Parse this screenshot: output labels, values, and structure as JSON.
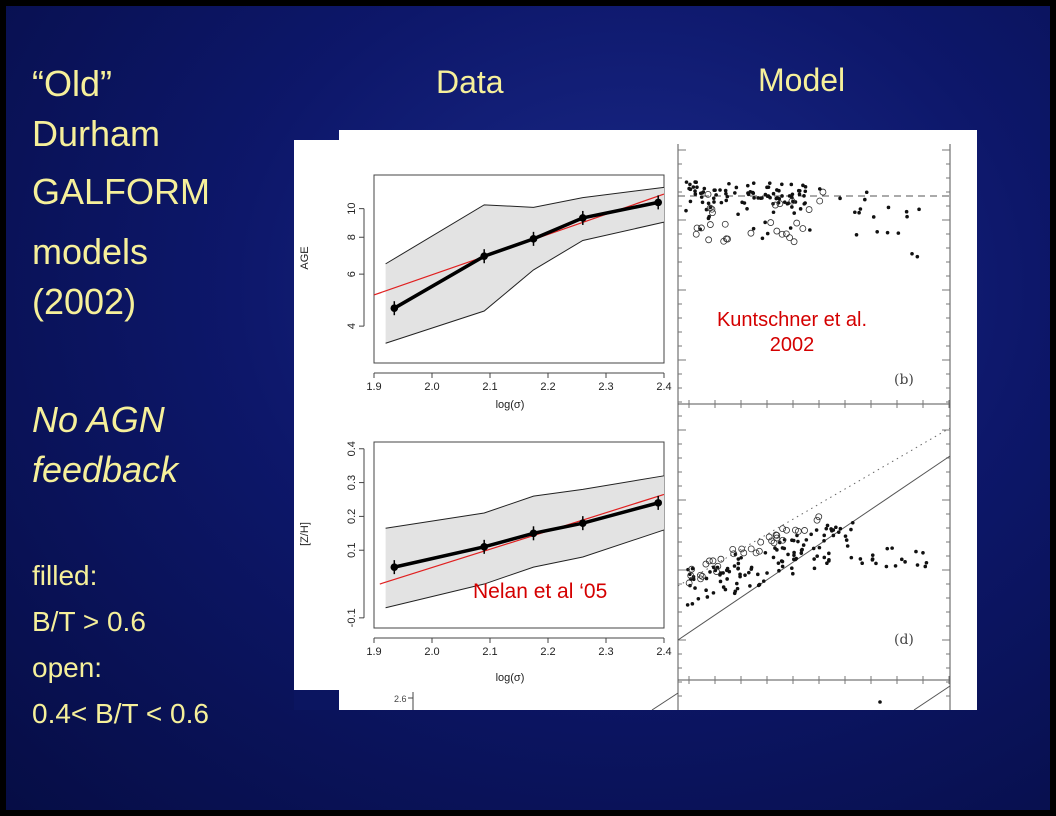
{
  "left_text": {
    "line1": "“Old”",
    "line2": "Durham",
    "line3": "GALFORM",
    "line4": "models",
    "line5": "(2002)",
    "italic1": "No AGN",
    "italic2": "feedback",
    "filled_label": "filled:",
    "filled_value": "B/T > 0.6",
    "open_label": "open:",
    "open_value": "0.4< B/T < 0.6"
  },
  "headers": {
    "data": "Data",
    "model": "Model"
  },
  "annotations": {
    "kuntschner_line1": "Kuntschner et al.",
    "kuntschner_line2": "2002",
    "nelan": "Nelan et al ‘05",
    "panel_b": "(b)",
    "panel_d": "(d)",
    "bottom_tick": "2.6"
  },
  "colors": {
    "annotation": "#d40000",
    "text": "#f6f09a",
    "fit_line": "#e02020",
    "band": "#e3e3e3"
  },
  "chart_data": [
    {
      "type": "line",
      "xlabel": "log(σ)",
      "ylabel": "AGE",
      "log_y": true,
      "xlim": [
        1.9,
        2.4
      ],
      "ylim": [
        3,
        13
      ],
      "xticks": [
        1.9,
        2.0,
        2.1,
        2.2,
        2.3,
        2.4
      ],
      "yticks": [
        4,
        6,
        8,
        10
      ],
      "x": [
        1.935,
        2.09,
        2.175,
        2.26,
        2.39
      ],
      "y": [
        4.6,
        6.9,
        7.9,
        9.3,
        10.5
      ],
      "band_x": [
        1.92,
        2.09,
        2.175,
        2.26,
        2.4
      ],
      "band_upper": [
        6.5,
        10.3,
        10.1,
        10.9,
        11.8
      ],
      "band_lower": [
        3.5,
        4.5,
        6.2,
        7.8,
        9.0
      ],
      "fit_x": [
        1.9,
        2.4
      ],
      "fit_y": [
        5.1,
        11.2
      ]
    },
    {
      "type": "line",
      "xlabel": "log(σ)",
      "ylabel": "[Z/H]",
      "xlim": [
        1.9,
        2.4
      ],
      "ylim": [
        -0.13,
        0.42
      ],
      "xticks": [
        1.9,
        2.0,
        2.1,
        2.2,
        2.3,
        2.4
      ],
      "yticks": [
        -0.1,
        0.1,
        0.2,
        0.3,
        0.4
      ],
      "x": [
        1.935,
        2.09,
        2.175,
        2.26,
        2.39
      ],
      "y": [
        0.05,
        0.11,
        0.15,
        0.18,
        0.24
      ],
      "band_x": [
        1.92,
        2.09,
        2.175,
        2.26,
        2.4
      ],
      "band_upper": [
        0.165,
        0.21,
        0.26,
        0.28,
        0.32
      ],
      "band_lower": [
        -0.07,
        0.0,
        0.05,
        0.08,
        0.16
      ],
      "fit_x": [
        1.91,
        2.4
      ],
      "fit_y": [
        0.0,
        0.265
      ]
    }
  ]
}
